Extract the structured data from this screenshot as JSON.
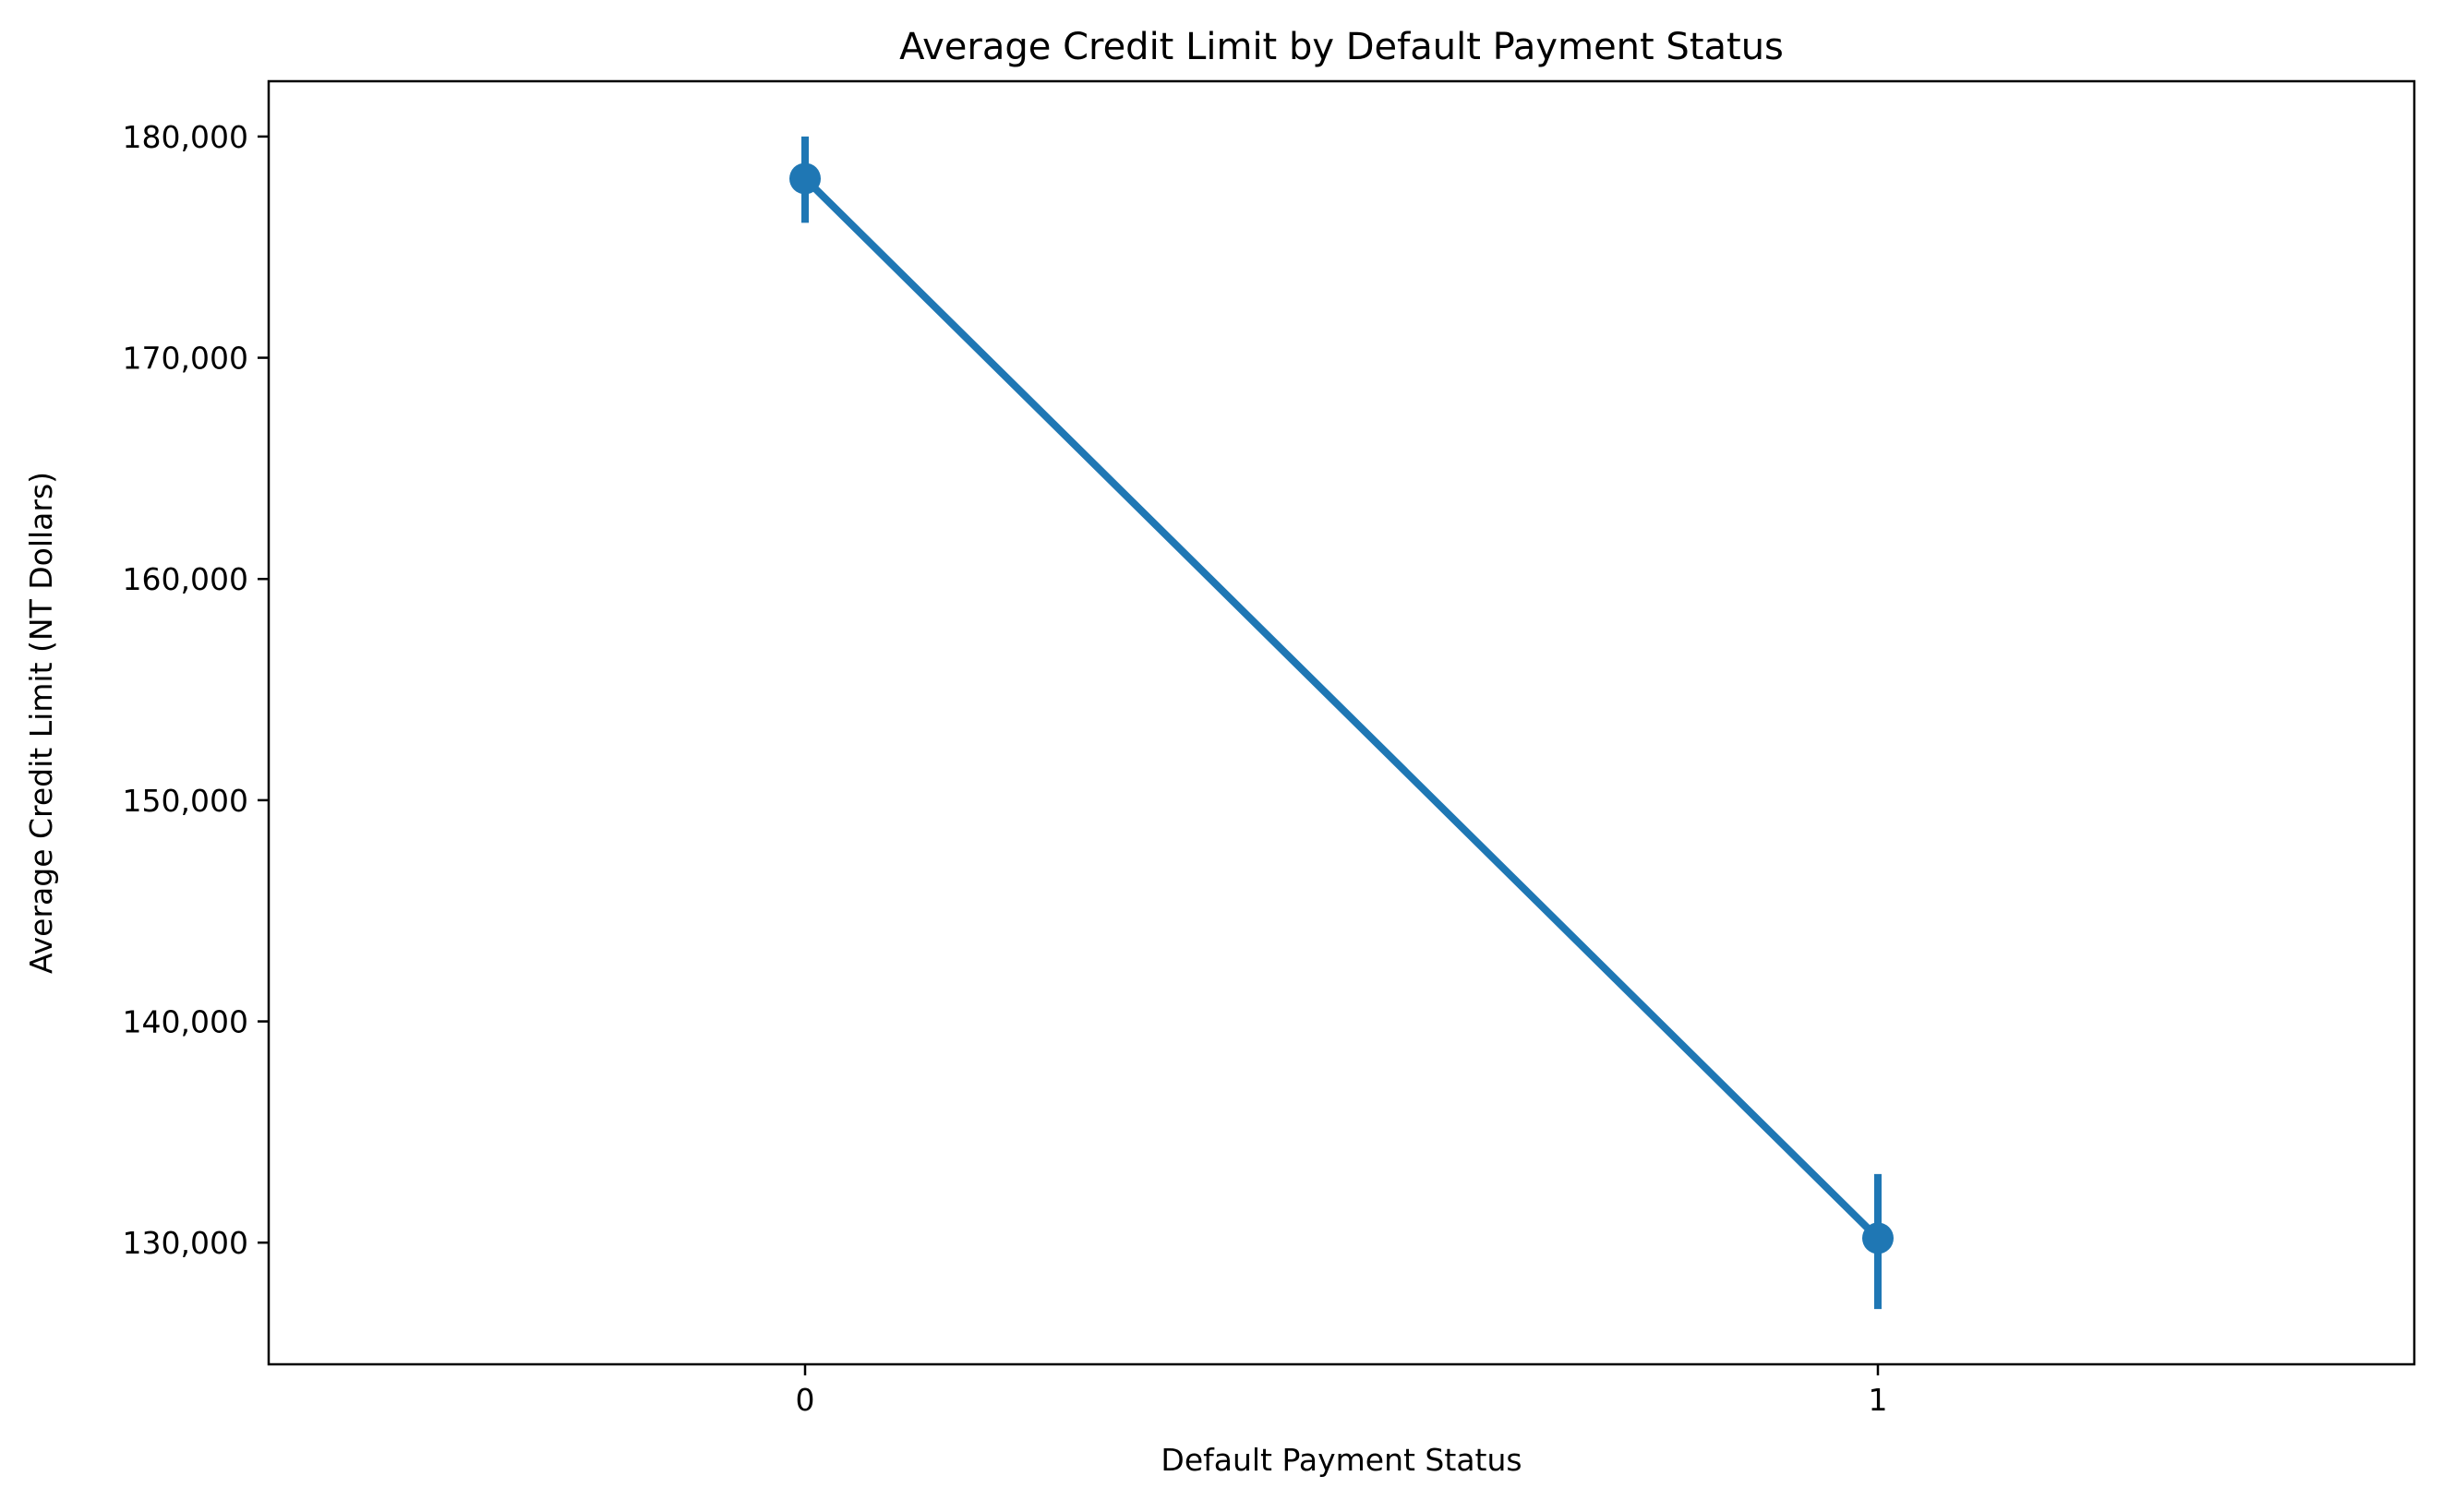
{
  "chart_data": {
    "type": "line",
    "title": "Average Credit Limit by Default Payment Status",
    "xlabel": "Default Payment Status",
    "ylabel": "Average Credit Limit (NT Dollars)",
    "categories": [
      "0",
      "1"
    ],
    "series": [
      {
        "values": [
          178100,
          130200
        ],
        "error_low": [
          176100,
          127000
        ],
        "error_high": [
          180000,
          133100
        ],
        "color": "#1f77b4"
      }
    ],
    "ylim": [
      124500,
      182500
    ],
    "yticks": [
      130000,
      140000,
      150000,
      160000,
      170000,
      180000
    ],
    "ytick_labels": [
      "130,000",
      "140,000",
      "150,000",
      "160,000",
      "170,000",
      "180,000"
    ],
    "grid": false,
    "legend": "none"
  }
}
